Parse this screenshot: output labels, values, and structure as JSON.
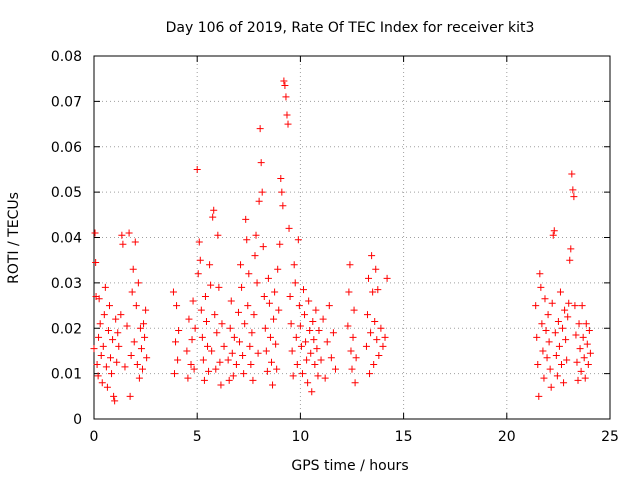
{
  "chart_data": {
    "type": "scatter",
    "title": "Day 106 of 2019, Rate Of TEC Index for receiver kit3",
    "xlabel": "GPS time / hours",
    "ylabel": "ROTI / TECUs",
    "xlim": [
      0,
      25
    ],
    "ylim": [
      0,
      0.08
    ],
    "xticks": [
      0,
      5,
      10,
      15,
      20,
      25
    ],
    "xtick_labels": [
      "0",
      "5",
      "10",
      "15",
      "20",
      "25"
    ],
    "yticks": [
      0,
      0.01,
      0.02,
      0.03,
      0.04,
      0.05,
      0.06,
      0.07,
      0.08
    ],
    "ytick_labels": [
      "0",
      "0.01",
      "0.02",
      "0.03",
      "0.04",
      "0.05",
      "0.06",
      "0.07",
      "0.08"
    ],
    "grid": true,
    "marker": "+",
    "color": "#ff0000",
    "series": [
      {
        "name": "ROTI",
        "points": [
          [
            0.0,
            0.0155
          ],
          [
            0.05,
            0.041
          ],
          [
            0.08,
            0.0345
          ],
          [
            0.1,
            0.027
          ],
          [
            0.15,
            0.012
          ],
          [
            0.2,
            0.0095
          ],
          [
            0.22,
            0.018
          ],
          [
            0.25,
            0.0265
          ],
          [
            0.3,
            0.021
          ],
          [
            0.35,
            0.014
          ],
          [
            0.4,
            0.008
          ],
          [
            0.45,
            0.016
          ],
          [
            0.5,
            0.023
          ],
          [
            0.55,
            0.029
          ],
          [
            0.6,
            0.0115
          ],
          [
            0.65,
            0.007
          ],
          [
            0.7,
            0.0195
          ],
          [
            0.75,
            0.025
          ],
          [
            0.8,
            0.0135
          ],
          [
            0.85,
            0.01
          ],
          [
            0.9,
            0.0175
          ],
          [
            0.95,
            0.005
          ],
          [
            1.0,
            0.004
          ],
          [
            1.05,
            0.022
          ],
          [
            1.1,
            0.0125
          ],
          [
            1.15,
            0.019
          ],
          [
            1.2,
            0.016
          ],
          [
            1.3,
            0.023
          ],
          [
            1.35,
            0.0405
          ],
          [
            1.4,
            0.0385
          ],
          [
            1.5,
            0.0115
          ],
          [
            1.6,
            0.0205
          ],
          [
            1.7,
            0.041
          ],
          [
            1.75,
            0.005
          ],
          [
            1.8,
            0.014
          ],
          [
            1.85,
            0.028
          ],
          [
            1.9,
            0.033
          ],
          [
            1.95,
            0.017
          ],
          [
            2.0,
            0.039
          ],
          [
            2.05,
            0.025
          ],
          [
            2.1,
            0.012
          ],
          [
            2.15,
            0.03
          ],
          [
            2.2,
            0.009
          ],
          [
            2.25,
            0.02
          ],
          [
            2.3,
            0.0155
          ],
          [
            2.35,
            0.011
          ],
          [
            2.4,
            0.021
          ],
          [
            2.45,
            0.018
          ],
          [
            2.5,
            0.024
          ],
          [
            2.55,
            0.0135
          ],
          [
            3.85,
            0.028
          ],
          [
            3.9,
            0.01
          ],
          [
            3.95,
            0.017
          ],
          [
            4.0,
            0.025
          ],
          [
            4.05,
            0.013
          ],
          [
            4.1,
            0.0195
          ],
          [
            4.5,
            0.015
          ],
          [
            4.55,
            0.009
          ],
          [
            4.6,
            0.022
          ],
          [
            4.7,
            0.012
          ],
          [
            4.75,
            0.0175
          ],
          [
            4.8,
            0.026
          ],
          [
            4.85,
            0.011
          ],
          [
            4.9,
            0.02
          ],
          [
            5.0,
            0.055
          ],
          [
            5.05,
            0.032
          ],
          [
            5.1,
            0.039
          ],
          [
            5.15,
            0.035
          ],
          [
            5.2,
            0.024
          ],
          [
            5.25,
            0.018
          ],
          [
            5.3,
            0.013
          ],
          [
            5.35,
            0.0085
          ],
          [
            5.4,
            0.027
          ],
          [
            5.45,
            0.0215
          ],
          [
            5.5,
            0.016
          ],
          [
            5.55,
            0.0105
          ],
          [
            5.6,
            0.034
          ],
          [
            5.65,
            0.0295
          ],
          [
            5.7,
            0.015
          ],
          [
            5.75,
            0.0445
          ],
          [
            5.8,
            0.046
          ],
          [
            5.85,
            0.023
          ],
          [
            5.9,
            0.011
          ],
          [
            5.95,
            0.019
          ],
          [
            6.0,
            0.0405
          ],
          [
            6.05,
            0.029
          ],
          [
            6.1,
            0.0125
          ],
          [
            6.15,
            0.0075
          ],
          [
            6.2,
            0.021
          ],
          [
            6.3,
            0.016
          ],
          [
            6.5,
            0.013
          ],
          [
            6.55,
            0.0085
          ],
          [
            6.6,
            0.02
          ],
          [
            6.65,
            0.026
          ],
          [
            6.7,
            0.0145
          ],
          [
            6.75,
            0.0095
          ],
          [
            6.8,
            0.018
          ],
          [
            6.9,
            0.012
          ],
          [
            7.0,
            0.0235
          ],
          [
            7.05,
            0.017
          ],
          [
            7.1,
            0.034
          ],
          [
            7.15,
            0.029
          ],
          [
            7.2,
            0.014
          ],
          [
            7.25,
            0.01
          ],
          [
            7.3,
            0.021
          ],
          [
            7.35,
            0.044
          ],
          [
            7.4,
            0.0395
          ],
          [
            7.45,
            0.025
          ],
          [
            7.5,
            0.032
          ],
          [
            7.55,
            0.016
          ],
          [
            7.6,
            0.012
          ],
          [
            7.65,
            0.019
          ],
          [
            7.7,
            0.0085
          ],
          [
            7.75,
            0.023
          ],
          [
            7.8,
            0.036
          ],
          [
            7.85,
            0.0405
          ],
          [
            7.9,
            0.03
          ],
          [
            7.95,
            0.0145
          ],
          [
            8.0,
            0.048
          ],
          [
            8.05,
            0.064
          ],
          [
            8.1,
            0.0565
          ],
          [
            8.15,
            0.05
          ],
          [
            8.2,
            0.038
          ],
          [
            8.25,
            0.027
          ],
          [
            8.3,
            0.02
          ],
          [
            8.35,
            0.015
          ],
          [
            8.4,
            0.0105
          ],
          [
            8.45,
            0.031
          ],
          [
            8.5,
            0.0255
          ],
          [
            8.55,
            0.018
          ],
          [
            8.6,
            0.0125
          ],
          [
            8.65,
            0.0075
          ],
          [
            8.7,
            0.022
          ],
          [
            8.75,
            0.028
          ],
          [
            8.8,
            0.0165
          ],
          [
            8.85,
            0.011
          ],
          [
            8.9,
            0.033
          ],
          [
            8.95,
            0.024
          ],
          [
            9.0,
            0.0385
          ],
          [
            9.05,
            0.053
          ],
          [
            9.1,
            0.05
          ],
          [
            9.15,
            0.047
          ],
          [
            9.2,
            0.0745
          ],
          [
            9.25,
            0.0735
          ],
          [
            9.3,
            0.071
          ],
          [
            9.35,
            0.067
          ],
          [
            9.4,
            0.065
          ],
          [
            9.45,
            0.042
          ],
          [
            9.5,
            0.027
          ],
          [
            9.55,
            0.021
          ],
          [
            9.6,
            0.015
          ],
          [
            9.65,
            0.0095
          ],
          [
            9.7,
            0.034
          ],
          [
            9.75,
            0.03
          ],
          [
            9.8,
            0.018
          ],
          [
            9.85,
            0.012
          ],
          [
            9.9,
            0.0395
          ],
          [
            9.95,
            0.025
          ],
          [
            10.0,
            0.0205
          ],
          [
            10.05,
            0.016
          ],
          [
            10.1,
            0.01
          ],
          [
            10.15,
            0.0285
          ],
          [
            10.2,
            0.023
          ],
          [
            10.25,
            0.017
          ],
          [
            10.3,
            0.013
          ],
          [
            10.35,
            0.008
          ],
          [
            10.4,
            0.026
          ],
          [
            10.45,
            0.0195
          ],
          [
            10.5,
            0.0145
          ],
          [
            10.55,
            0.006
          ],
          [
            10.6,
            0.0215
          ],
          [
            10.65,
            0.0175
          ],
          [
            10.7,
            0.012
          ],
          [
            10.75,
            0.024
          ],
          [
            10.8,
            0.0155
          ],
          [
            10.85,
            0.0095
          ],
          [
            10.9,
            0.0195
          ],
          [
            11.0,
            0.013
          ],
          [
            11.1,
            0.022
          ],
          [
            11.2,
            0.009
          ],
          [
            11.3,
            0.017
          ],
          [
            11.4,
            0.025
          ],
          [
            11.5,
            0.0135
          ],
          [
            11.6,
            0.019
          ],
          [
            11.7,
            0.011
          ],
          [
            12.3,
            0.0205
          ],
          [
            12.35,
            0.028
          ],
          [
            12.4,
            0.034
          ],
          [
            12.45,
            0.015
          ],
          [
            12.5,
            0.011
          ],
          [
            12.55,
            0.018
          ],
          [
            12.6,
            0.024
          ],
          [
            12.65,
            0.008
          ],
          [
            12.7,
            0.0135
          ],
          [
            13.2,
            0.016
          ],
          [
            13.25,
            0.023
          ],
          [
            13.3,
            0.031
          ],
          [
            13.35,
            0.01
          ],
          [
            13.4,
            0.019
          ],
          [
            13.45,
            0.036
          ],
          [
            13.5,
            0.028
          ],
          [
            13.55,
            0.012
          ],
          [
            13.6,
            0.0215
          ],
          [
            13.65,
            0.033
          ],
          [
            13.7,
            0.0175
          ],
          [
            13.75,
            0.0285
          ],
          [
            13.8,
            0.014
          ],
          [
            13.9,
            0.02
          ],
          [
            14.0,
            0.016
          ],
          [
            14.1,
            0.018
          ],
          [
            14.2,
            0.031
          ],
          [
            21.4,
            0.025
          ],
          [
            21.45,
            0.018
          ],
          [
            21.5,
            0.012
          ],
          [
            21.55,
            0.005
          ],
          [
            21.6,
            0.032
          ],
          [
            21.65,
            0.029
          ],
          [
            21.7,
            0.021
          ],
          [
            21.75,
            0.015
          ],
          [
            21.8,
            0.009
          ],
          [
            21.85,
            0.0265
          ],
          [
            21.9,
            0.0195
          ],
          [
            21.95,
            0.0135
          ],
          [
            22.0,
            0.023
          ],
          [
            22.05,
            0.017
          ],
          [
            22.1,
            0.011
          ],
          [
            22.15,
            0.007
          ],
          [
            22.2,
            0.0255
          ],
          [
            22.25,
            0.0405
          ],
          [
            22.3,
            0.0415
          ],
          [
            22.35,
            0.019
          ],
          [
            22.4,
            0.014
          ],
          [
            22.45,
            0.0095
          ],
          [
            22.5,
            0.0215
          ],
          [
            22.55,
            0.016
          ],
          [
            22.6,
            0.028
          ],
          [
            22.65,
            0.012
          ],
          [
            22.7,
            0.02
          ],
          [
            22.75,
            0.008
          ],
          [
            22.8,
            0.024
          ],
          [
            22.85,
            0.0175
          ],
          [
            22.9,
            0.013
          ],
          [
            22.95,
            0.0225
          ],
          [
            23.0,
            0.0255
          ],
          [
            23.05,
            0.035
          ],
          [
            23.1,
            0.0375
          ],
          [
            23.15,
            0.054
          ],
          [
            23.2,
            0.0505
          ],
          [
            23.25,
            0.049
          ],
          [
            23.3,
            0.025
          ],
          [
            23.35,
            0.0185
          ],
          [
            23.4,
            0.0125
          ],
          [
            23.45,
            0.0085
          ],
          [
            23.5,
            0.021
          ],
          [
            23.55,
            0.0155
          ],
          [
            23.6,
            0.0105
          ],
          [
            23.65,
            0.025
          ],
          [
            23.7,
            0.018
          ],
          [
            23.75,
            0.0135
          ],
          [
            23.8,
            0.009
          ],
          [
            23.85,
            0.021
          ],
          [
            23.9,
            0.0165
          ],
          [
            23.95,
            0.012
          ],
          [
            24.0,
            0.0195
          ],
          [
            24.05,
            0.0145
          ]
        ]
      }
    ]
  }
}
